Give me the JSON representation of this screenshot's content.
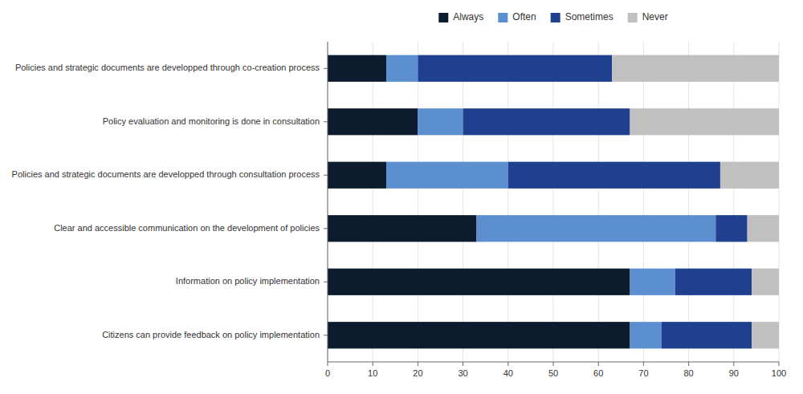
{
  "chart_data": {
    "type": "bar",
    "orientation": "horizontal",
    "stacked": true,
    "categories": [
      "Citizens can provide feedback on policy implementation",
      "Information on policy implementation",
      "Clear and accessible communication on the development of policies",
      "Policies and strategic documents are developped through consultation process",
      "Policy evaluation and monitoring is done in consultation",
      "Policies and strategic documents are developped through co-creation process"
    ],
    "series": [
      {
        "name": "Always",
        "color": "#0d1b2e",
        "values": [
          67,
          67,
          33,
          13,
          20,
          13
        ]
      },
      {
        "name": "Often",
        "color": "#5b8fcf",
        "values": [
          7,
          10,
          53,
          27,
          10,
          7
        ]
      },
      {
        "name": "Sometimes",
        "color": "#1f3f8f",
        "values": [
          20,
          17,
          7,
          47,
          37,
          43
        ]
      },
      {
        "name": "Never",
        "color": "#c0c0c0",
        "values": [
          6,
          6,
          7,
          13,
          33,
          37
        ]
      }
    ],
    "xlim": [
      0,
      100
    ],
    "xticks": [
      0,
      10,
      20,
      30,
      40,
      50,
      60,
      70,
      80,
      90,
      100
    ],
    "grid": true,
    "legend": "top"
  }
}
